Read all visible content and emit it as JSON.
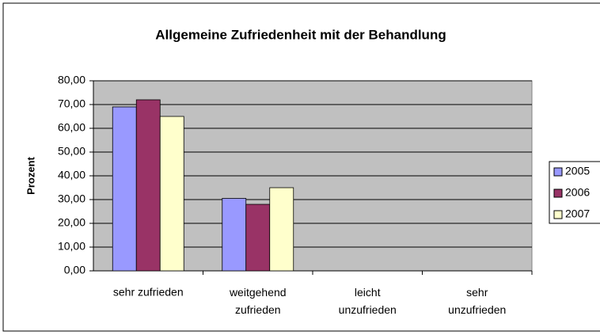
{
  "chart_data": {
    "type": "bar",
    "title": "Allgemeine Zufriedenheit mit der Behandlung",
    "y_label": "Prozent",
    "categories": [
      "sehr zufrieden",
      "weitgehend\nzufrieden",
      "leicht\nunzufrieden",
      "sehr\nunzufrieden"
    ],
    "series": [
      {
        "name": "2005",
        "color": "#9999ff",
        "values": [
          69,
          30.5,
          0,
          0
        ]
      },
      {
        "name": "2006",
        "color": "#993366",
        "values": [
          72,
          28,
          0,
          0
        ]
      },
      {
        "name": "2007",
        "color": "#ffffcc",
        "values": [
          65,
          35,
          0,
          0
        ]
      }
    ],
    "ylim": [
      0,
      80
    ],
    "yticks": [
      {
        "value": 0,
        "label": "0,00"
      },
      {
        "value": 10,
        "label": "10,00"
      },
      {
        "value": 20,
        "label": "20,00"
      },
      {
        "value": 30,
        "label": "30,00"
      },
      {
        "value": 40,
        "label": "40,00"
      },
      {
        "value": 50,
        "label": "50,00"
      },
      {
        "value": 60,
        "label": "60,00"
      },
      {
        "value": 70,
        "label": "70,00"
      },
      {
        "value": 80,
        "label": "80,00"
      }
    ],
    "grid": true,
    "legend": "right"
  }
}
